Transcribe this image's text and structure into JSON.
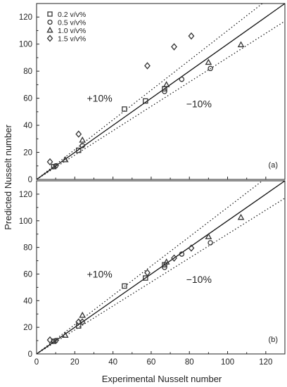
{
  "chart_data": {
    "type": "scatter",
    "xlabel": "Experimental Nusselt number",
    "ylabel": "Predicted Nusselt number",
    "xlim": [
      0,
      130
    ],
    "ylim": [
      0,
      130
    ],
    "xticks": [
      "0",
      "20",
      "40",
      "60",
      "80",
      "100",
      "120"
    ],
    "yticks": [
      "0",
      "20",
      "40",
      "60",
      "80",
      "100",
      "120"
    ],
    "legend_placement": "top-left",
    "series_styles": [
      {
        "marker": "square",
        "color": "#333333"
      },
      {
        "marker": "circle",
        "color": "#333333"
      },
      {
        "marker": "triangle",
        "color": "#333333"
      },
      {
        "marker": "diamond",
        "color": "#333333"
      }
    ],
    "panels": [
      {
        "label": "(a)",
        "annotations": {
          "plus": "+10%",
          "minus": "−10%"
        },
        "series": [
          {
            "name": "0.2 v/v%",
            "points": [
              [
                9,
                9.5
              ],
              [
                22,
                21.5
              ],
              [
                46,
                52
              ],
              [
                57,
                58
              ],
              [
                67,
                67
              ]
            ]
          },
          {
            "name": "0.5 v/v%",
            "points": [
              [
                10,
                10
              ],
              [
                24,
                25
              ],
              [
                67,
                65
              ],
              [
                76,
                74
              ],
              [
                91,
                82
              ]
            ]
          },
          {
            "name": "1.0 v/v%",
            "points": [
              [
                15,
                14.5
              ],
              [
                24,
                29
              ],
              [
                68,
                70
              ],
              [
                90,
                86.5
              ],
              [
                107,
                99.5
              ]
            ]
          },
          {
            "name": "1.5 v/v%",
            "points": [
              [
                7,
                13
              ],
              [
                22,
                33.5
              ],
              [
                58,
                84
              ],
              [
                72,
                98
              ],
              [
                81,
                106
              ]
            ]
          }
        ]
      },
      {
        "label": "(b)",
        "annotations": {
          "plus": "+10%",
          "minus": "−10%"
        },
        "series": [
          {
            "name": "0.2 v/v%",
            "points": [
              [
                9,
                9.5
              ],
              [
                22,
                21
              ],
              [
                46,
                51
              ],
              [
                57,
                57
              ],
              [
                67,
                67
              ]
            ]
          },
          {
            "name": "0.5 v/v%",
            "points": [
              [
                10,
                10
              ],
              [
                24,
                24
              ],
              [
                67,
                65
              ],
              [
                76,
                75
              ],
              [
                91,
                83.5
              ]
            ]
          },
          {
            "name": "1.0 v/v%",
            "points": [
              [
                15,
                14
              ],
              [
                24,
                29
              ],
              [
                68,
                69
              ],
              [
                90,
                88
              ],
              [
                107,
                102.5
              ]
            ]
          },
          {
            "name": "1.5 v/v%",
            "points": [
              [
                7,
                10.5
              ],
              [
                22,
                24
              ],
              [
                58,
                61
              ],
              [
                72,
                72
              ],
              [
                81,
                79.5
              ]
            ]
          }
        ]
      }
    ]
  }
}
